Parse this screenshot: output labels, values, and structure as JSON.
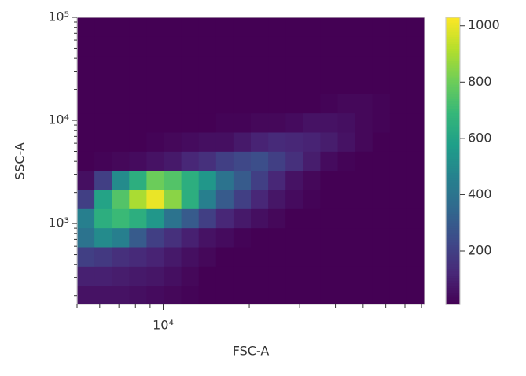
{
  "chart_data": {
    "type": "heatmap2d",
    "x_label": "FSC-A",
    "y_label": "SSC-A",
    "xscale": "log",
    "yscale": "log",
    "xlim": [
      5000,
      82000
    ],
    "ylim": [
      164,
      100000
    ],
    "xticks": [
      {
        "value": 10000,
        "label": "10⁴"
      }
    ],
    "xminorticks": [
      5000,
      6000,
      7000,
      8000,
      9000,
      20000,
      30000,
      40000,
      50000,
      60000,
      70000,
      80000
    ],
    "yticks": [
      {
        "value": 1000,
        "label": "10³"
      },
      {
        "value": 10000,
        "label": "10⁴"
      },
      {
        "value": 100000,
        "label": "10⁵"
      }
    ],
    "yminorticks": [
      200,
      300,
      400,
      500,
      600,
      700,
      800,
      900,
      2000,
      3000,
      4000,
      5000,
      6000,
      7000,
      8000,
      9000,
      20000,
      30000,
      40000,
      50000,
      60000,
      70000,
      80000,
      90000
    ],
    "colormap": "viridis",
    "clim": [
      10,
      1030
    ],
    "cticks": [
      200,
      400,
      600,
      800,
      1000
    ],
    "z": [
      [
        60,
        60,
        60,
        50,
        40,
        30,
        20,
        10,
        10,
        10,
        10,
        10,
        10,
        10,
        10,
        10,
        10,
        10,
        10,
        10
      ],
      [
        100,
        100,
        90,
        80,
        70,
        50,
        30,
        10,
        10,
        10,
        10,
        10,
        10,
        10,
        10,
        10,
        10,
        10,
        10,
        10
      ],
      [
        200,
        180,
        150,
        130,
        110,
        80,
        50,
        30,
        10,
        10,
        10,
        10,
        10,
        10,
        10,
        10,
        10,
        10,
        10,
        10
      ],
      [
        400,
        500,
        450,
        300,
        200,
        150,
        100,
        60,
        40,
        20,
        10,
        10,
        10,
        10,
        10,
        10,
        10,
        10,
        10,
        10
      ],
      [
        450,
        650,
        700,
        650,
        550,
        400,
        300,
        200,
        120,
        80,
        50,
        30,
        10,
        10,
        10,
        10,
        10,
        10,
        10,
        10
      ],
      [
        200,
        600,
        750,
        900,
        1000,
        850,
        650,
        450,
        300,
        200,
        120,
        70,
        40,
        20,
        10,
        10,
        10,
        10,
        10,
        10
      ],
      [
        50,
        200,
        500,
        650,
        800,
        750,
        650,
        550,
        400,
        300,
        200,
        120,
        60,
        30,
        10,
        10,
        10,
        10,
        10,
        10
      ],
      [
        10,
        20,
        30,
        40,
        60,
        80,
        120,
        150,
        200,
        230,
        250,
        200,
        150,
        90,
        40,
        20,
        10,
        10,
        10,
        10
      ],
      [
        10,
        10,
        10,
        10,
        20,
        30,
        40,
        50,
        50,
        80,
        110,
        130,
        120,
        110,
        90,
        60,
        30,
        10,
        10,
        10
      ],
      [
        10,
        10,
        10,
        10,
        10,
        10,
        10,
        10,
        20,
        20,
        30,
        30,
        40,
        60,
        60,
        50,
        30,
        20,
        10,
        10
      ],
      [
        10,
        10,
        10,
        10,
        10,
        10,
        10,
        10,
        10,
        10,
        10,
        10,
        10,
        10,
        20,
        30,
        30,
        20,
        10,
        10
      ],
      [
        10,
        10,
        10,
        10,
        10,
        10,
        10,
        10,
        10,
        10,
        10,
        10,
        10,
        10,
        10,
        10,
        10,
        10,
        10,
        10
      ],
      [
        10,
        10,
        10,
        10,
        10,
        10,
        10,
        10,
        10,
        10,
        10,
        10,
        10,
        10,
        10,
        10,
        10,
        10,
        10,
        10
      ],
      [
        10,
        10,
        10,
        10,
        10,
        10,
        10,
        10,
        10,
        10,
        10,
        10,
        10,
        10,
        10,
        10,
        10,
        10,
        10,
        10
      ],
      [
        10,
        10,
        10,
        10,
        10,
        10,
        10,
        10,
        10,
        10,
        10,
        10,
        10,
        10,
        10,
        10,
        10,
        10,
        10,
        10
      ]
    ]
  }
}
